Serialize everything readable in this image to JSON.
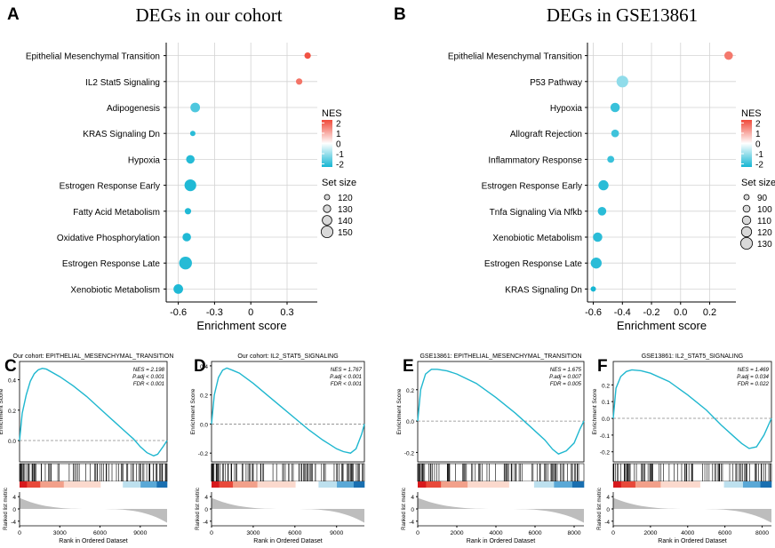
{
  "colors": {
    "nes_high": "#f04a3a",
    "nes_mid": "#ffffff",
    "nes_low": "#16b6d3",
    "curve": "#1fb7cf",
    "grid": "#d3d3d3",
    "metric": "#bdbdbd",
    "bar_red": "#e0201d",
    "bar_blue": "#1a6fb0"
  },
  "chart_data": [
    {
      "panel": "A",
      "type": "scatter",
      "title": "DEGs in our cohort",
      "xlabel": "Enrichment score",
      "ylabel": "",
      "xlim": [
        -0.7,
        0.55
      ],
      "xticks": [
        -0.6,
        -0.3,
        0,
        0.3
      ],
      "xtick_labels": [
        "-0.6",
        "-0.3",
        "0",
        "0.3"
      ],
      "categories": [
        "Epithelial Mesenchymal Transition",
        "IL2 Stat5 Signaling",
        "Adipogenesis",
        "KRAS Signaling Dn",
        "Hypoxia",
        "Estrogen Response Early",
        "Fatty Acid Metabolism",
        "Oxidative Phosphorylation",
        "Estrogen Response Late",
        "Xenobiotic Metabolism"
      ],
      "x": [
        0.47,
        0.4,
        -0.46,
        -0.48,
        -0.5,
        -0.5,
        -0.52,
        -0.53,
        -0.54,
        -0.6
      ],
      "nes": [
        2.2,
        1.77,
        -1.75,
        -2.1,
        -2.15,
        -2.2,
        -2.2,
        -2.2,
        -2.15,
        -2.2
      ],
      "set_size": [
        125,
        125,
        140,
        110,
        135,
        150,
        125,
        135,
        155,
        140
      ],
      "legend": {
        "color_title": "NES",
        "color_labels": [
          "2",
          "1",
          "0",
          "-1",
          "-2"
        ],
        "color_range": [
          -2.3,
          2.3
        ],
        "size_title": "Set size",
        "size_values": [
          120,
          130,
          140,
          150
        ],
        "size_labels": [
          "120",
          "130",
          "140",
          "150"
        ]
      }
    },
    {
      "panel": "B",
      "type": "scatter",
      "title": "DEGs in GSE13861",
      "xlabel": "Enrichment score",
      "ylabel": "",
      "xlim": [
        -0.64,
        0.38
      ],
      "xticks": [
        -0.6,
        -0.4,
        -0.2,
        0,
        0.2
      ],
      "xtick_labels": [
        "-0.6",
        "-0.4",
        "-0.2",
        "0.0",
        "0.2"
      ],
      "categories": [
        "Epithelial Mesenchymal Transition",
        "P53 Pathway",
        "Hypoxia",
        "Allograft Rejection",
        "Inflammatory Response",
        "Estrogen Response Early",
        "Tnfa Signaling Via Nfkb",
        "Xenobiotic Metabolism",
        "Estrogen Response Late",
        "KRAS Signaling Dn"
      ],
      "x": [
        0.33,
        -0.4,
        -0.45,
        -0.45,
        -0.48,
        -0.53,
        -0.54,
        -0.57,
        -0.58,
        -0.6
      ],
      "nes": [
        1.7,
        -1.1,
        -1.95,
        -1.9,
        -1.95,
        -2.1,
        -2.1,
        -2.1,
        -2.1,
        -2.3
      ],
      "set_size": [
        110,
        130,
        115,
        105,
        100,
        120,
        110,
        115,
        125,
        85
      ],
      "legend": {
        "color_title": "NES",
        "color_labels": [
          "2",
          "1",
          "0",
          "-1",
          "-2"
        ],
        "color_range": [
          -2.3,
          2.3
        ],
        "size_title": "Set size",
        "size_values": [
          90,
          100,
          110,
          120,
          130
        ],
        "size_labels": [
          "90",
          "100",
          "110",
          "120",
          "130"
        ]
      }
    },
    {
      "panel": "C",
      "type": "line",
      "title": "Our cohort: EPITHELIAL_MESENCHYMAL_TRANSITION",
      "xlabel": "Rank in Ordered Dataset",
      "ylabel": "Enrichment Score",
      "ylabel_metric": "Ranked list metric",
      "xlim": [
        0,
        11000
      ],
      "ylim": [
        -0.14,
        0.52
      ],
      "xticks": [
        0,
        3000,
        6000,
        9000
      ],
      "xtick_labels": [
        "0",
        "3000",
        "6000",
        "9000"
      ],
      "yticks": [
        0,
        0.2,
        0.4
      ],
      "ytick_labels": [
        "0.0",
        "0.2",
        "0.4"
      ],
      "metric_ylim": [
        -5.5,
        5.5
      ],
      "metric_yticks": [
        4,
        0,
        -4
      ],
      "metric_ytick_labels": [
        "4",
        "0",
        "-4"
      ],
      "x": [
        0,
        200,
        500,
        800,
        1100,
        1400,
        1700,
        2000,
        3000,
        4000,
        5000,
        6000,
        7000,
        8000,
        8500,
        9000,
        9500,
        10000,
        10300,
        10700,
        11000
      ],
      "y": [
        0.0,
        0.18,
        0.3,
        0.39,
        0.44,
        0.465,
        0.475,
        0.47,
        0.42,
        0.36,
        0.29,
        0.21,
        0.13,
        0.05,
        0.01,
        -0.04,
        -0.08,
        -0.1,
        -0.09,
        -0.04,
        0.0
      ],
      "stats": [
        "NES = 2.198",
        "P.adj < 0.001",
        "FDR < 0.001"
      ]
    },
    {
      "panel": "D",
      "type": "line",
      "title": "Our cohort: IL2_STAT5_SIGNALING",
      "xlabel": "Rank in Ordered Dataset",
      "ylabel": "Enrichment Score",
      "ylabel_metric": "Ranked list metric",
      "xlim": [
        0,
        11000
      ],
      "ylim": [
        -0.26,
        0.43
      ],
      "xticks": [
        0,
        3000,
        6000,
        9000
      ],
      "xtick_labels": [
        "0",
        "3000",
        "6000",
        "9000"
      ],
      "yticks": [
        -0.2,
        0,
        0.2,
        0.4
      ],
      "ytick_labels": [
        "-0.2",
        "0.0",
        "0.2",
        "0.4"
      ],
      "metric_ylim": [
        -5.5,
        5.5
      ],
      "metric_yticks": [
        4,
        0,
        -4
      ],
      "metric_ytick_labels": [
        "4",
        "0",
        "-4"
      ],
      "x": [
        0,
        200,
        500,
        800,
        1100,
        1500,
        2000,
        3000,
        4000,
        5000,
        6000,
        7000,
        8000,
        8500,
        9000,
        9500,
        10000,
        10400,
        10800,
        11000
      ],
      "y": [
        0.0,
        0.2,
        0.32,
        0.37,
        0.385,
        0.37,
        0.35,
        0.28,
        0.2,
        0.12,
        0.04,
        -0.04,
        -0.11,
        -0.14,
        -0.17,
        -0.19,
        -0.2,
        -0.17,
        -0.07,
        0.0
      ],
      "stats": [
        "NES = 1.767",
        "P.adj < 0.001",
        "FDR < 0.001"
      ]
    },
    {
      "panel": "E",
      "type": "line",
      "title": "GSE13861: EPITHELIAL_MESENCHYMAL_TRANSITION",
      "xlabel": "Rank in Ordered Dataset",
      "ylabel": "Enrichment Score",
      "ylabel_metric": "Ranked list metric",
      "xlim": [
        0,
        8500
      ],
      "ylim": [
        -0.26,
        0.38
      ],
      "xticks": [
        0,
        2000,
        4000,
        6000,
        8000
      ],
      "xtick_labels": [
        "0",
        "2000",
        "4000",
        "6000",
        "8000"
      ],
      "yticks": [
        -0.2,
        0,
        0.2
      ],
      "ytick_labels": [
        "-0.2",
        "0.0",
        "0.2"
      ],
      "metric_ylim": [
        -5.5,
        5.5
      ],
      "metric_yticks": [
        4,
        0,
        -4
      ],
      "metric_ytick_labels": [
        "4",
        "0",
        "-4"
      ],
      "x": [
        0,
        150,
        400,
        700,
        1000,
        1500,
        2000,
        3000,
        4000,
        5000,
        5800,
        6500,
        6900,
        7200,
        7600,
        8000,
        8300,
        8500
      ],
      "y": [
        0.0,
        0.2,
        0.3,
        0.33,
        0.33,
        0.32,
        0.3,
        0.24,
        0.15,
        0.05,
        -0.04,
        -0.12,
        -0.18,
        -0.21,
        -0.19,
        -0.14,
        -0.05,
        0.0
      ],
      "stats": [
        "NES = 1.675",
        "P.adj = 0.007",
        "FDR = 0.005"
      ]
    },
    {
      "panel": "F",
      "type": "line",
      "title": "GSE13861: IL2_STAT5_SIGNALING",
      "xlabel": "Rank in Ordered Dataset",
      "ylabel": "Enrichment Score",
      "ylabel_metric": "Ranked list metric",
      "xlim": [
        0,
        8500
      ],
      "ylim": [
        -0.26,
        0.34
      ],
      "xticks": [
        0,
        2000,
        4000,
        6000,
        8000
      ],
      "xtick_labels": [
        "0",
        "2000",
        "4000",
        "6000",
        "8000"
      ],
      "yticks": [
        -0.2,
        -0.1,
        0,
        0.1,
        0.2
      ],
      "ytick_labels": [
        "-0.2",
        "-0.1",
        "0.0",
        "0.1",
        "0.2"
      ],
      "metric_ylim": [
        -5.5,
        5.5
      ],
      "metric_yticks": [
        4,
        0,
        -4
      ],
      "metric_ytick_labels": [
        "4",
        "0",
        "-4"
      ],
      "x": [
        0,
        150,
        400,
        700,
        1000,
        1500,
        2000,
        3000,
        4000,
        5000,
        5800,
        6500,
        6900,
        7300,
        7700,
        8100,
        8500
      ],
      "y": [
        0.0,
        0.18,
        0.25,
        0.28,
        0.29,
        0.285,
        0.27,
        0.22,
        0.14,
        0.05,
        -0.04,
        -0.11,
        -0.15,
        -0.18,
        -0.17,
        -0.1,
        0.0
      ],
      "stats": [
        "NES = 1.469",
        "P.adj = 0.034",
        "FDR = 0.022"
      ]
    }
  ]
}
